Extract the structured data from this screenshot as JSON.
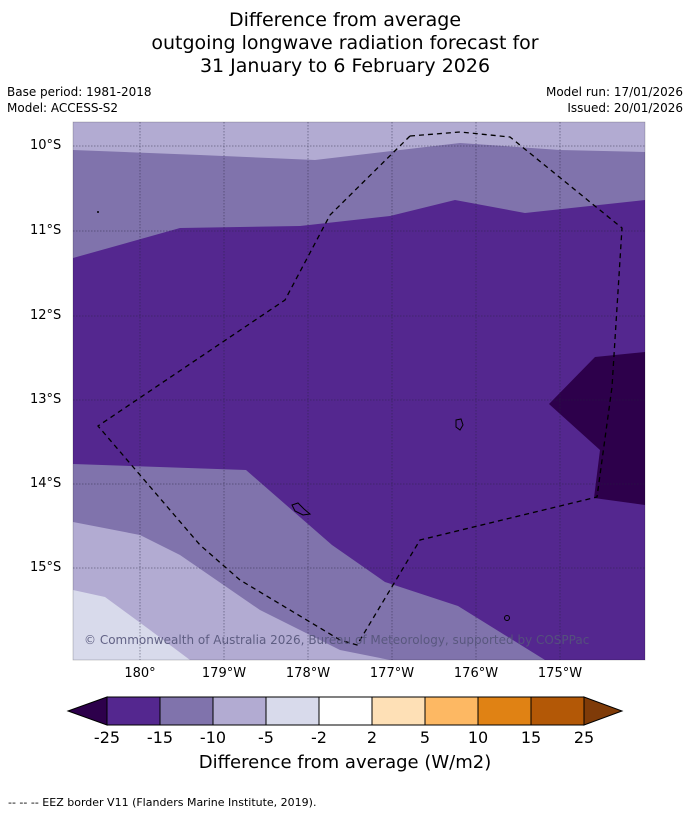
{
  "title": {
    "line1": "Difference from average",
    "line2": "outgoing longwave radiation forecast for",
    "line3": "31 January to 6 February 2026"
  },
  "meta": {
    "base_period": "Base period: 1981-2018",
    "model": "Model: ACCESS-S2",
    "model_run": "Model run: 17/01/2026",
    "issued": "Issued: 20/01/2026"
  },
  "map": {
    "latitude_labels": [
      "10°S",
      "11°S",
      "12°S",
      "13°S",
      "14°S",
      "15°S"
    ],
    "longitude_labels": [
      "180°",
      "179°W",
      "178°W",
      "177°W",
      "176°W",
      "175°W"
    ],
    "copyright": "© Commonwealth of Australia 2026, Bureau of Meteorology, supported by COSPPac",
    "colors": {
      "minus25_to_15": "#54278f",
      "minus15_to_10": "#8073ac",
      "minus10_to_5": "#b2abd2",
      "minus5_to_2": "#d8daeb",
      "below_minus25": "#2d004b",
      "boundary": "#000000"
    }
  },
  "colorbar": {
    "ticks": [
      "-25",
      "-15",
      "-10",
      "-5",
      "-2",
      "2",
      "5",
      "10",
      "15",
      "25"
    ],
    "colors": [
      "#2d004b",
      "#54278f",
      "#8073ac",
      "#b2abd2",
      "#d8daeb",
      "#ffffff",
      "#fee0b6",
      "#fdb863",
      "#e08214",
      "#b35806",
      "#7f3b08"
    ],
    "label": "Difference from average (W/m2)"
  },
  "footer": "--  --  -- EEZ border V11 (Flanders Marine Institute, 2019)."
}
